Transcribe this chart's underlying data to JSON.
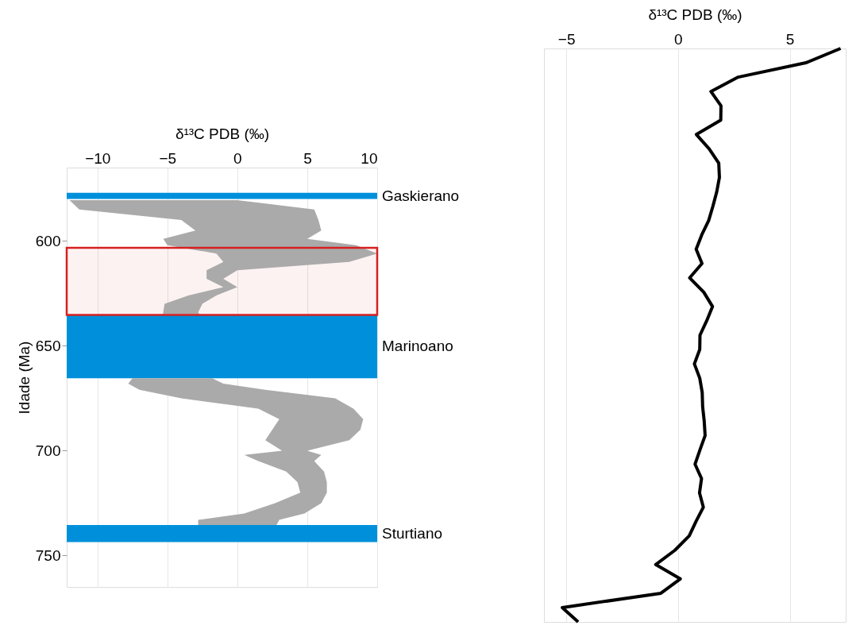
{
  "chart_data": [
    {
      "type": "line",
      "orientation": "horizontal",
      "xlabel": "δ¹³C PDB (‰)",
      "ylabel": "Idade (Ma)",
      "xlim": [
        -12.2,
        10
      ],
      "xticks": [
        -10,
        -5,
        0,
        5,
        10
      ],
      "ylim": [
        765,
        565
      ],
      "yticks": [
        600,
        650,
        700,
        750
      ],
      "grid": "x",
      "series": [
        {
          "color": "#aaaaaa",
          "x": [
            580.5,
            585,
            590,
            595,
            599,
            602,
            606,
            610,
            614,
            618,
            622,
            626,
            630,
            634,
            635
          ],
          "values": [
            null,
            null,
            null,
            null,
            null,
            null,
            null,
            null,
            null,
            null,
            null,
            null,
            null,
            null,
            null
          ],
          "lower": [
            -12.0,
            -11.3,
            -4.0,
            -3.0,
            -5.3,
            -5.0,
            -1.5,
            -1.0,
            -2.2,
            -2.2,
            -1.0,
            -3.5,
            -5.2,
            -5.3,
            -5.3
          ],
          "upper": [
            0.0,
            5.5,
            5.8,
            6.0,
            5.0,
            8.5,
            10.0,
            8.0,
            0.0,
            -1.0,
            0.0,
            -1.5,
            -2.5,
            -2.8,
            -2.7
          ]
        },
        {
          "color": "#aaaaaa",
          "x": [
            665.5,
            668,
            671,
            675,
            680,
            685,
            690,
            695,
            700,
            702,
            705,
            710,
            715,
            720,
            725,
            730,
            733,
            735.5
          ],
          "values": [
            null,
            null,
            null,
            null,
            null,
            null,
            null,
            null,
            null,
            null,
            null,
            null,
            null,
            null,
            null,
            null,
            null,
            null
          ],
          "lower": [
            -7.5,
            -7.8,
            -7.0,
            -4.0,
            1.5,
            3.0,
            2.5,
            2.0,
            3.2,
            0.5,
            1.5,
            3.5,
            4.3,
            4.5,
            2.7,
            0.5,
            -2.8,
            -2.8
          ],
          "upper": [
            -1.8,
            -1.0,
            2.0,
            7.0,
            8.3,
            9.0,
            8.8,
            8.0,
            5.0,
            6.0,
            5.5,
            6.2,
            6.4,
            6.4,
            6.0,
            4.8,
            3.0,
            2.8
          ]
        }
      ],
      "bands": [
        {
          "axis": "y",
          "from": 577,
          "to": 580,
          "label": "Gaskierano",
          "color": "#0090db"
        },
        {
          "axis": "y",
          "from": 635.3,
          "to": 665.5,
          "label": "Marinoano",
          "color": "#0090db"
        },
        {
          "axis": "y",
          "from": 735.5,
          "to": 743.6,
          "label": "Sturtiano",
          "color": "#0090db"
        },
        {
          "axis": "y",
          "from": 603.3,
          "to": 635.3,
          "color": "#d62020"
        }
      ]
    },
    {
      "type": "line",
      "orientation": "horizontal",
      "xlabel": "δ¹³C PDB (‰)",
      "xlim": [
        -6,
        7.5
      ],
      "xticks": [
        -5,
        0,
        5
      ],
      "grid": "x",
      "tick_labels": "x",
      "categories": [
        null,
        null,
        null,
        null,
        null,
        null,
        null,
        null,
        null,
        null,
        null,
        null,
        null,
        null,
        null,
        null,
        null,
        null,
        null,
        null,
        null,
        null,
        null,
        null,
        null,
        null,
        null,
        null,
        null,
        null,
        null,
        null,
        null,
        null,
        null,
        null,
        null,
        null,
        null,
        null,
        null
      ],
      "series": [
        {
          "color": "#000000",
          "line_style": "solid",
          "values": [
            7.27,
            5.72,
            2.69,
            1.47,
            1.92,
            1.91,
            0.82,
            1.39,
            1.82,
            1.85,
            1.73,
            1.56,
            1.37,
            1.06,
            0.81,
            1.07,
            0.52,
            1.15,
            1.54,
            1.28,
            0.98,
            0.97,
            0.73,
            0.97,
            1.08,
            1.1,
            1.17,
            1.21,
            0.98,
            0.76,
            1.05,
            0.96,
            1.13,
            0.8,
            0.5,
            -0.14,
            -1.0,
            0.1,
            -0.77,
            -5.18,
            -4.47
          ]
        }
      ]
    }
  ]
}
